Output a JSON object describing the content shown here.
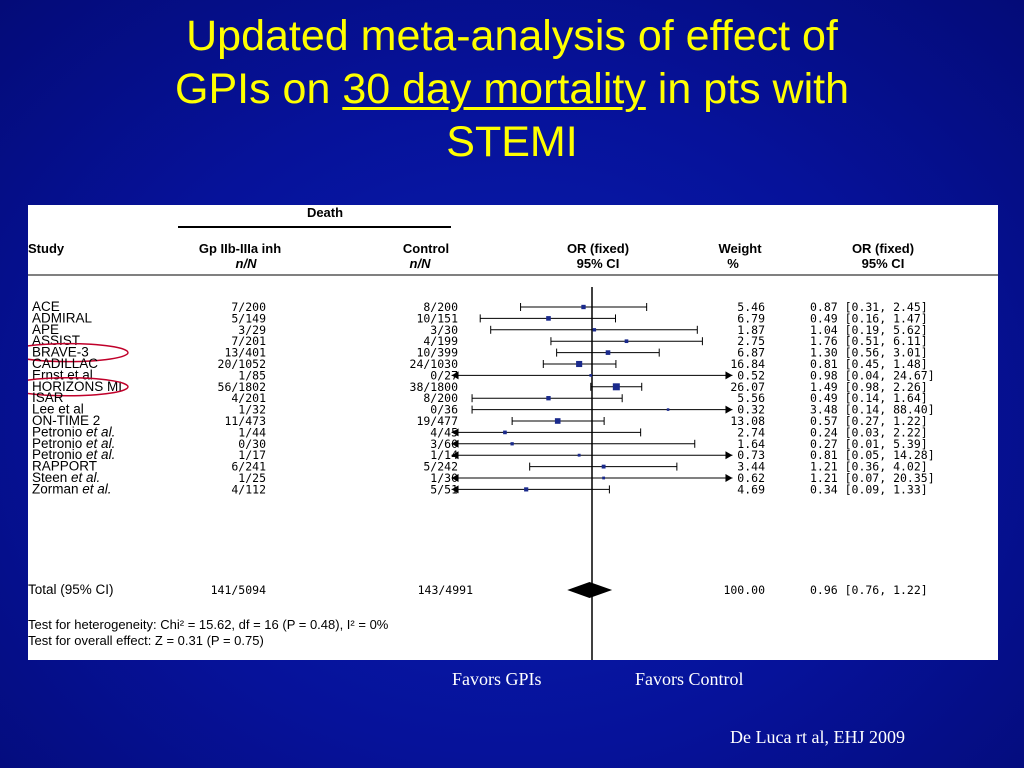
{
  "slide": {
    "title_line1": "Updated meta-analysis of effect of",
    "title_line2_pre": "GPIs on ",
    "title_line2_underlined": "30 day mortality",
    "title_line2_post": " in pts with",
    "title_line3": "STEMI",
    "favors_left": "Favors GPIs",
    "favors_right": "Favors Control",
    "citation": "De Luca rt al,  EHJ 2009"
  },
  "colors": {
    "background": "#06129a",
    "title": "#ffff00",
    "panel": "#ffffff",
    "marker": "#1a2a8c",
    "highlight_ellipse": "#c0002a"
  },
  "chart_data": {
    "type": "forest",
    "headers": {
      "death": "Death",
      "study": "Study",
      "treatment": "Gp IIb-IIIa inh",
      "treatment_sub": "n/N",
      "control": "Control",
      "control_sub": "n/N",
      "or_plot": "OR (fixed)",
      "or_plot_sub": "95% CI",
      "weight": "Weight",
      "weight_sub": "%",
      "or_text": "OR (fixed)",
      "or_text_sub": "95% CI"
    },
    "x_scale": "log",
    "xlim": [
      0.1,
      10
    ],
    "studies": [
      {
        "name": "ACE",
        "italic": "",
        "treatment": "7/200",
        "control": "8/200",
        "weight": "5.46",
        "or": 0.87,
        "lo": 0.31,
        "hi": 2.45,
        "ci_text": "0.87 [0.31, 2.45]",
        "highlight": false
      },
      {
        "name": "ADMIRAL",
        "italic": "",
        "treatment": "5/149",
        "control": "10/151",
        "weight": "6.79",
        "or": 0.49,
        "lo": 0.16,
        "hi": 1.47,
        "ci_text": "0.49 [0.16, 1.47]",
        "highlight": false
      },
      {
        "name": "APE",
        "italic": "",
        "treatment": "3/29",
        "control": "3/30",
        "weight": "1.87",
        "or": 1.04,
        "lo": 0.19,
        "hi": 5.62,
        "ci_text": "1.04 [0.19, 5.62]",
        "highlight": false
      },
      {
        "name": "ASSIST",
        "italic": "",
        "treatment": "7/201",
        "control": "4/199",
        "weight": "2.75",
        "or": 1.76,
        "lo": 0.51,
        "hi": 6.11,
        "ci_text": "1.76 [0.51, 6.11]",
        "highlight": false
      },
      {
        "name": "BRAVE-3",
        "italic": "",
        "treatment": "13/401",
        "control": "10/399",
        "weight": "6.87",
        "or": 1.3,
        "lo": 0.56,
        "hi": 3.01,
        "ci_text": "1.30 [0.56, 3.01]",
        "highlight": true
      },
      {
        "name": "CADILLAC",
        "italic": "",
        "treatment": "20/1052",
        "control": "24/1030",
        "weight": "16.84",
        "or": 0.81,
        "lo": 0.45,
        "hi": 1.48,
        "ci_text": "0.81 [0.45, 1.48]",
        "highlight": false
      },
      {
        "name": "Ernst et al",
        "italic": "",
        "treatment": "1/85",
        "control": "0/27",
        "weight": "0.52",
        "or": 0.98,
        "lo": 0.04,
        "hi": 24.67,
        "ci_text": "0.98 [0.04, 24.67]",
        "highlight": false
      },
      {
        "name": "HORIZONS MI",
        "italic": "",
        "treatment": "56/1802",
        "control": "38/1800",
        "weight": "26.07",
        "or": 1.49,
        "lo": 0.98,
        "hi": 2.26,
        "ci_text": "1.49 [0.98, 2.26]",
        "highlight": true
      },
      {
        "name": "ISAR",
        "italic": "",
        "treatment": "4/201",
        "control": "8/200",
        "weight": "5.56",
        "or": 0.49,
        "lo": 0.14,
        "hi": 1.64,
        "ci_text": "0.49 [0.14, 1.64]",
        "highlight": false
      },
      {
        "name": "Lee et al",
        "italic": "",
        "treatment": "1/32",
        "control": "0/36",
        "weight": "0.32",
        "or": 3.48,
        "lo": 0.14,
        "hi": 88.4,
        "ci_text": "3.48 [0.14, 88.40]",
        "highlight": false
      },
      {
        "name": "ON-TIME 2",
        "italic": "",
        "treatment": "11/473",
        "control": "19/477",
        "weight": "13.08",
        "or": 0.57,
        "lo": 0.27,
        "hi": 1.22,
        "ci_text": "0.57 [0.27, 1.22]",
        "highlight": false
      },
      {
        "name": "Petronio ",
        "italic": "et al.",
        "treatment": "1/44",
        "control": "4/45",
        "weight": "2.74",
        "or": 0.24,
        "lo": 0.03,
        "hi": 2.22,
        "ci_text": "0.24 [0.03, 2.22]",
        "highlight": false
      },
      {
        "name": "Petronio ",
        "italic": "et al.",
        "treatment": "0/30",
        "control": "3/60",
        "weight": "1.64",
        "or": 0.27,
        "lo": 0.01,
        "hi": 5.39,
        "ci_text": "0.27 [0.01, 5.39]",
        "highlight": false
      },
      {
        "name": "Petronio ",
        "italic": "et al.",
        "treatment": "1/17",
        "control": "1/14",
        "weight": "0.73",
        "or": 0.81,
        "lo": 0.05,
        "hi": 14.28,
        "ci_text": "0.81 [0.05, 14.28]",
        "highlight": false
      },
      {
        "name": "RAPPORT",
        "italic": "",
        "treatment": "6/241",
        "control": "5/242",
        "weight": "3.44",
        "or": 1.21,
        "lo": 0.36,
        "hi": 4.02,
        "ci_text": "1.21 [0.36, 4.02]",
        "highlight": false
      },
      {
        "name": "Steen ",
        "italic": "et al.",
        "treatment": "1/25",
        "control": "1/30",
        "weight": "0.62",
        "or": 1.21,
        "lo": 0.07,
        "hi": 20.35,
        "ci_text": "1.21 [0.07, 20.35]",
        "highlight": false
      },
      {
        "name": "Zorman ",
        "italic": "et al.",
        "treatment": "4/112",
        "control": "5/51",
        "weight": "4.69",
        "or": 0.34,
        "lo": 0.09,
        "hi": 1.33,
        "ci_text": "0.34 [0.09, 1.33]",
        "highlight": false
      }
    ],
    "total": {
      "name": "Total (95% CI)",
      "treatment": "141/5094",
      "control": "143/4991",
      "weight": "100.00",
      "or": 0.96,
      "lo": 0.76,
      "hi": 1.22,
      "ci_text": "0.96 [0.76, 1.22]"
    },
    "heterogeneity_text": "Test for heterogeneity: Chi² = 15.62, df = 16 (P = 0.48), I² = 0%",
    "overall_effect_text": "Test for overall effect: Z = 0.31 (P = 0.75)"
  }
}
